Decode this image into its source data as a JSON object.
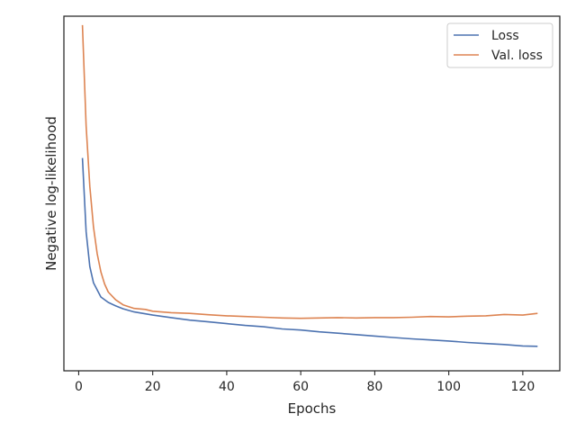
{
  "chart_data": {
    "type": "line",
    "title": "",
    "xlabel": "Epochs",
    "ylabel": "Negative log-likelihood",
    "xlim": [
      -4,
      130
    ],
    "ylim": [
      0,
      1
    ],
    "xticks": [
      0,
      20,
      40,
      60,
      80,
      100,
      120
    ],
    "yticks_visible": false,
    "grid": false,
    "legend_position": "top-right",
    "series": [
      {
        "name": "Loss",
        "color": "#4c72b0",
        "x": [
          1,
          2,
          3,
          4,
          6,
          8,
          10,
          12,
          15,
          20,
          25,
          30,
          35,
          40,
          45,
          50,
          55,
          60,
          65,
          70,
          75,
          80,
          85,
          90,
          95,
          100,
          105,
          110,
          115,
          120,
          124
        ],
        "y": [
          0.6,
          0.392,
          0.294,
          0.248,
          0.208,
          0.193,
          0.183,
          0.175,
          0.166,
          0.157,
          0.15,
          0.143,
          0.138,
          0.133,
          0.128,
          0.124,
          0.118,
          0.115,
          0.11,
          0.106,
          0.102,
          0.098,
          0.094,
          0.09,
          0.087,
          0.084,
          0.08,
          0.077,
          0.074,
          0.07,
          0.069
        ]
      },
      {
        "name": "Val. loss",
        "color": "#dd8452",
        "x": [
          1,
          2,
          3,
          4,
          5,
          6,
          7,
          8,
          10,
          12,
          15,
          18,
          20,
          25,
          30,
          35,
          40,
          45,
          50,
          55,
          60,
          65,
          70,
          75,
          80,
          85,
          90,
          95,
          100,
          105,
          110,
          115,
          120,
          124
        ],
        "y": [
          0.975,
          0.69,
          0.52,
          0.405,
          0.33,
          0.279,
          0.245,
          0.222,
          0.2,
          0.186,
          0.176,
          0.173,
          0.168,
          0.164,
          0.162,
          0.158,
          0.155,
          0.153,
          0.151,
          0.149,
          0.148,
          0.149,
          0.15,
          0.149,
          0.15,
          0.15,
          0.151,
          0.153,
          0.152,
          0.154,
          0.155,
          0.159,
          0.157,
          0.162
        ]
      }
    ]
  }
}
